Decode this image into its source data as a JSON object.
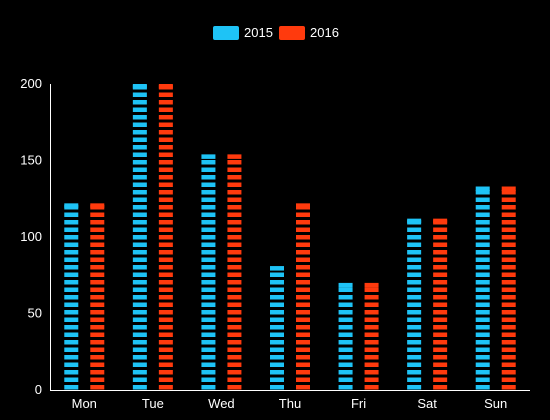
{
  "chart_data": {
    "type": "bar",
    "categories": [
      "Mon",
      "Tue",
      "Wed",
      "Thu",
      "Fri",
      "Sat",
      "Sun"
    ],
    "series": [
      {
        "name": "2015",
        "values": [
          122,
          200,
          154,
          81,
          70,
          112,
          133
        ]
      },
      {
        "name": "2016",
        "values": [
          122,
          200,
          154,
          122,
          70,
          112,
          133
        ]
      }
    ],
    "ylim": [
      0,
      200
    ],
    "yticks": [
      "0",
      "50",
      "100",
      "150",
      "200"
    ],
    "grid": false,
    "legend": "top-center",
    "colors": [
      "#1ec3f6",
      "#ff3a0d"
    ],
    "style": "segmented-bars"
  }
}
